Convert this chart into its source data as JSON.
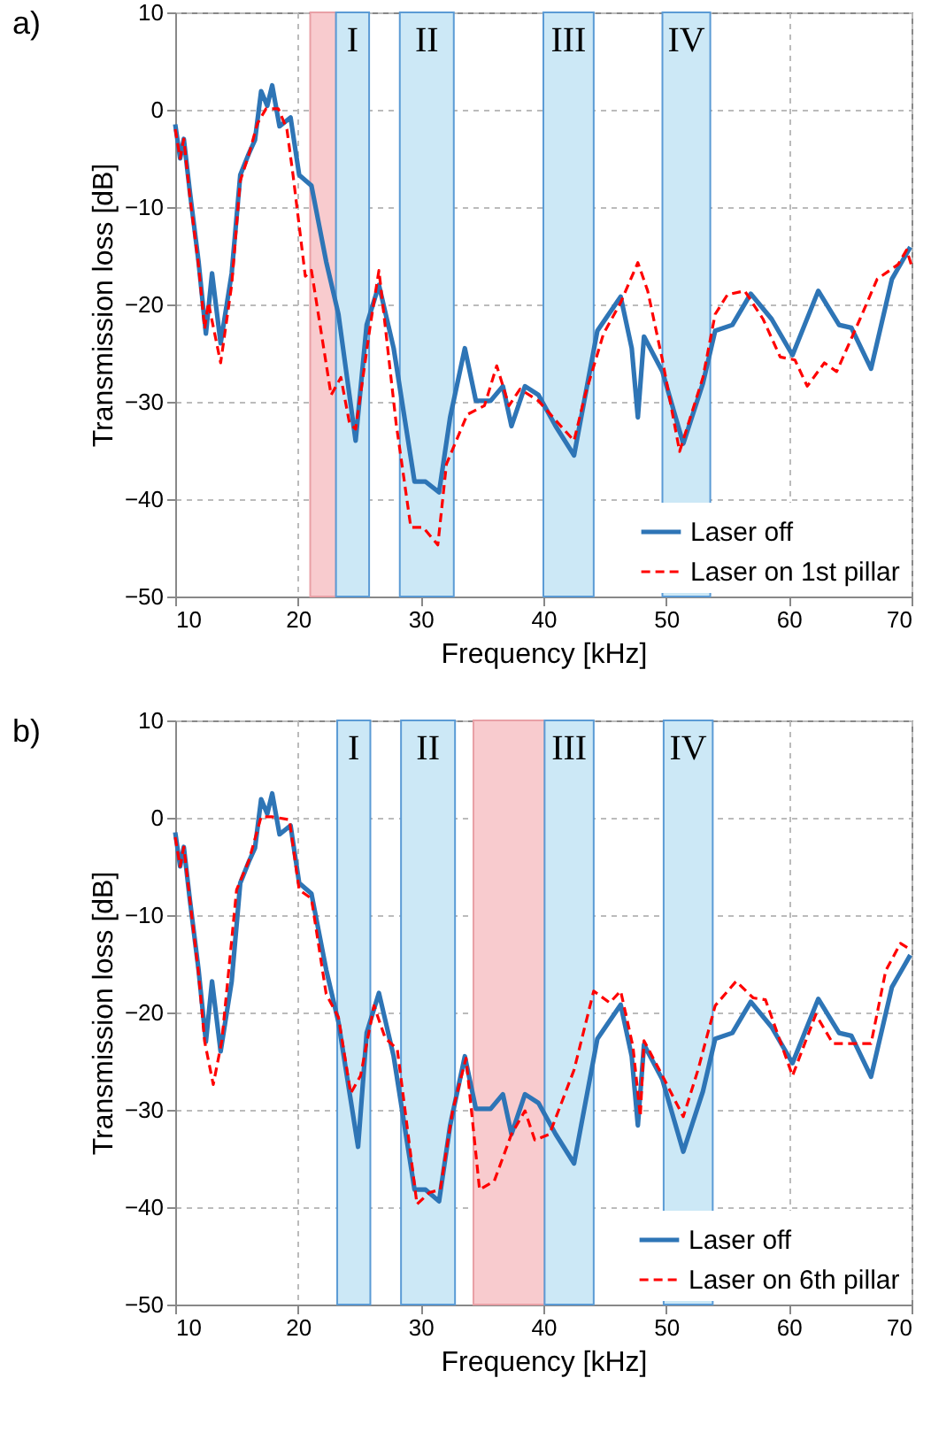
{
  "chart_data": [
    {
      "type": "line",
      "title": "a)",
      "xlabel": "Frequency [kHz]",
      "ylabel": "Transmission loss [dB]",
      "xlim": [
        10,
        70
      ],
      "xticks": [
        10,
        20,
        30,
        40,
        50,
        60,
        70
      ],
      "ylim": [
        -50,
        10
      ],
      "yticks": [
        -50,
        -40,
        -30,
        -20,
        -10,
        0,
        10
      ],
      "grid": true,
      "legend": "bottom right",
      "bands": [
        {
          "axis": "x",
          "from": 21,
          "to": 23.1,
          "color": "#f8cbce"
        },
        {
          "axis": "x",
          "from": 23.1,
          "to": 25.8,
          "label": "I",
          "color": "#cce8f6"
        },
        {
          "axis": "x",
          "from": 28.3,
          "to": 32.7,
          "label": "II",
          "color": "#cce8f6"
        },
        {
          "axis": "x",
          "from": 40,
          "to": 44.1,
          "label": "III",
          "color": "#cce8f6"
        },
        {
          "axis": "x",
          "from": 49.7,
          "to": 53.6,
          "label": "IV",
          "color": "#cce8f6"
        }
      ],
      "series": [
        {
          "name": "Laser off",
          "color": "#2e75b6",
          "line_style": "solid",
          "x": [
            10,
            10.4,
            10.7,
            11.2,
            11.9,
            12.5,
            13,
            13.7,
            14.6,
            15.3,
            16,
            16.5,
            17,
            17.5,
            17.9,
            18.5,
            19.4,
            20.1,
            21.1,
            22.3,
            23.3,
            24.7,
            25.6,
            26.6,
            27.8,
            29.5,
            30.4,
            31.5,
            32.4,
            33.6,
            34.5,
            35.7,
            36.7,
            37.4,
            38.5,
            39.6,
            41,
            42.5,
            44.4,
            46.3,
            47.2,
            47.7,
            48.2,
            49.7,
            51.4,
            53,
            54,
            55.4,
            56.9,
            58.6,
            60.3,
            62.4,
            64.1,
            65.1,
            66.7,
            68.4,
            69.9
          ],
          "values": [
            -1.5,
            -5,
            -3,
            -8.5,
            -15.6,
            -23,
            -16.8,
            -24,
            -16.8,
            -6.7,
            -4.5,
            -3.1,
            1.9,
            0.4,
            2.5,
            -1.7,
            -0.8,
            -6.7,
            -7.8,
            -15.6,
            -21,
            -34,
            -22.1,
            -18,
            -24.5,
            -38.2,
            -38.2,
            -39.3,
            -31.6,
            -24.5,
            -29.9,
            -29.9,
            -28.4,
            -32.5,
            -28.4,
            -29.3,
            -32.5,
            -35.5,
            -22.7,
            -19.2,
            -24.5,
            -31.6,
            -23.3,
            -26.9,
            -34.3,
            -28.1,
            -22.7,
            -22.1,
            -18.9,
            -21.5,
            -25.2,
            -18.6,
            -22.1,
            -22.4,
            -26.6,
            -17.4,
            -14.1
          ]
        },
        {
          "name": "Laser on 1st pillar",
          "color": "#ff0000",
          "line_style": "dashed",
          "x": [
            10,
            10.4,
            10.7,
            11.2,
            11.9,
            12.4,
            12.7,
            13.7,
            14.6,
            15.3,
            16,
            16.7,
            17.4,
            18.4,
            19.1,
            19.6,
            20.6,
            21.1,
            22.7,
            23.5,
            24.2,
            24.7,
            25.9,
            26.6,
            28,
            29.2,
            30.2,
            31.4,
            32.1,
            32.8,
            33.8,
            35.2,
            36.2,
            37.2,
            38.1,
            39.6,
            41,
            42.5,
            43.4,
            44.9,
            46.3,
            47.7,
            48.5,
            49.7,
            51.1,
            53,
            54,
            55,
            56.4,
            57.9,
            59.3,
            60.5,
            61.5,
            62.9,
            63.9,
            65.8,
            67.2,
            68.9,
            69.6,
            70
          ],
          "values": [
            -2,
            -5,
            -3,
            -9,
            -16,
            -22.5,
            -19.8,
            -26,
            -18,
            -7.3,
            -4.6,
            -1.4,
            0.1,
            0.1,
            -2,
            -6.7,
            -17.1,
            -16.5,
            -29.3,
            -27.5,
            -32.2,
            -32.8,
            -22.1,
            -16.5,
            -32.2,
            -42.9,
            -42.9,
            -44.7,
            -36.4,
            -34.3,
            -31.3,
            -30.4,
            -26.3,
            -30.4,
            -28.7,
            -29.9,
            -31.9,
            -34,
            -29.3,
            -23,
            -19.8,
            -15.7,
            -18.6,
            -25.7,
            -35.1,
            -27.5,
            -21,
            -19,
            -18.6,
            -21.5,
            -25.4,
            -25.7,
            -28.4,
            -26,
            -26.9,
            -21.5,
            -17.4,
            -15.9,
            -14.4,
            -16
          ]
        }
      ]
    },
    {
      "type": "line",
      "title": "b)",
      "xlabel": "Frequency [kHz]",
      "ylabel": "Transmission loss [dB]",
      "xlim": [
        10,
        70
      ],
      "xticks": [
        10,
        20,
        30,
        40,
        50,
        60,
        70
      ],
      "ylim": [
        -50,
        10
      ],
      "yticks": [
        -50,
        -40,
        -30,
        -20,
        -10,
        0,
        10
      ],
      "grid": true,
      "legend": "bottom right",
      "bands": [
        {
          "axis": "x",
          "from": 23.2,
          "to": 25.9,
          "label": "I",
          "color": "#cce8f6"
        },
        {
          "axis": "x",
          "from": 28.4,
          "to": 32.8,
          "label": "II",
          "color": "#cce8f6"
        },
        {
          "axis": "x",
          "from": 34.3,
          "to": 40.1,
          "color": "#f8cbce"
        },
        {
          "axis": "x",
          "from": 40.1,
          "to": 44.1,
          "label": "III",
          "color": "#cce8f6"
        },
        {
          "axis": "x",
          "from": 49.8,
          "to": 53.8,
          "label": "IV",
          "color": "#cce8f6"
        }
      ],
      "series": [
        {
          "name": "Laser off",
          "color": "#2e75b6",
          "line_style": "solid",
          "x": [
            10,
            10.4,
            10.7,
            11.2,
            11.9,
            12.5,
            13,
            13.7,
            14.6,
            15.3,
            16,
            16.5,
            17,
            17.5,
            17.9,
            18.5,
            19.4,
            20.1,
            21.1,
            22.3,
            23.3,
            24.9,
            25.6,
            26.6,
            27.8,
            29.5,
            30.4,
            31.5,
            32.4,
            33.6,
            34.5,
            35.7,
            36.7,
            37.4,
            38.5,
            39.6,
            41,
            42.5,
            44.4,
            46.3,
            47.2,
            47.7,
            48.2,
            49.7,
            51.4,
            53,
            54,
            55.4,
            56.9,
            58.6,
            60.3,
            62.4,
            64.1,
            65.1,
            66.7,
            68.4,
            69.9
          ],
          "values": [
            -1.5,
            -5,
            -3,
            -8.5,
            -15.6,
            -23,
            -16.8,
            -24,
            -16.8,
            -6.7,
            -4.5,
            -3.1,
            1.9,
            0.4,
            2.5,
            -1.7,
            -0.8,
            -6.7,
            -7.8,
            -15.6,
            -21,
            -33.8,
            -22.1,
            -18,
            -24.5,
            -38.2,
            -38.2,
            -39.4,
            -31.6,
            -24.5,
            -29.9,
            -29.9,
            -28.4,
            -32.5,
            -28.4,
            -29.3,
            -32.5,
            -35.5,
            -22.7,
            -19.2,
            -24.5,
            -31.6,
            -23.3,
            -26.9,
            -34.3,
            -28.1,
            -22.7,
            -22.1,
            -18.9,
            -21.5,
            -25.2,
            -18.6,
            -22.1,
            -22.4,
            -26.6,
            -17.4,
            -14.1
          ]
        },
        {
          "name": "Laser on 6th pillar",
          "color": "#ff0000",
          "line_style": "dashed",
          "x": [
            10,
            10.4,
            10.7,
            11.2,
            11.9,
            12.4,
            13.1,
            13.8,
            15,
            16,
            17,
            17.9,
            19.3,
            20.1,
            21.1,
            22.3,
            23.3,
            24.3,
            25.1,
            26.2,
            27.1,
            28.1,
            29.7,
            30.7,
            31.6,
            32.6,
            33.7,
            34.8,
            36,
            37.4,
            38.5,
            39.3,
            40.5,
            42.5,
            44.1,
            45.4,
            46.3,
            47.3,
            47.9,
            48.2,
            49.7,
            51.4,
            52.6,
            54,
            55.7,
            57.1,
            58.1,
            60.3,
            62.2,
            63.6,
            65.5,
            66.7,
            67.9,
            69.1,
            70
          ],
          "values": [
            -2,
            -5,
            -3,
            -8.5,
            -16,
            -23,
            -27.4,
            -22.9,
            -7.4,
            -4.4,
            0.1,
            0.1,
            -0.2,
            -7.4,
            -8.3,
            -18.1,
            -20.5,
            -28.3,
            -26.5,
            -19.3,
            -22.6,
            -23.8,
            -39.7,
            -38.5,
            -38.2,
            -30.1,
            -24.7,
            -38.2,
            -37.3,
            -32.5,
            -30.1,
            -33.1,
            -32.5,
            -25.9,
            -17.8,
            -19,
            -17.8,
            -23.5,
            -30.7,
            -22.9,
            -26.5,
            -30.7,
            -25.9,
            -19.3,
            -16.8,
            -18.5,
            -18.7,
            -26.5,
            -20.2,
            -23.2,
            -23.2,
            -23.2,
            -15.7,
            -12.9,
            -13.6
          ]
        }
      ]
    }
  ]
}
